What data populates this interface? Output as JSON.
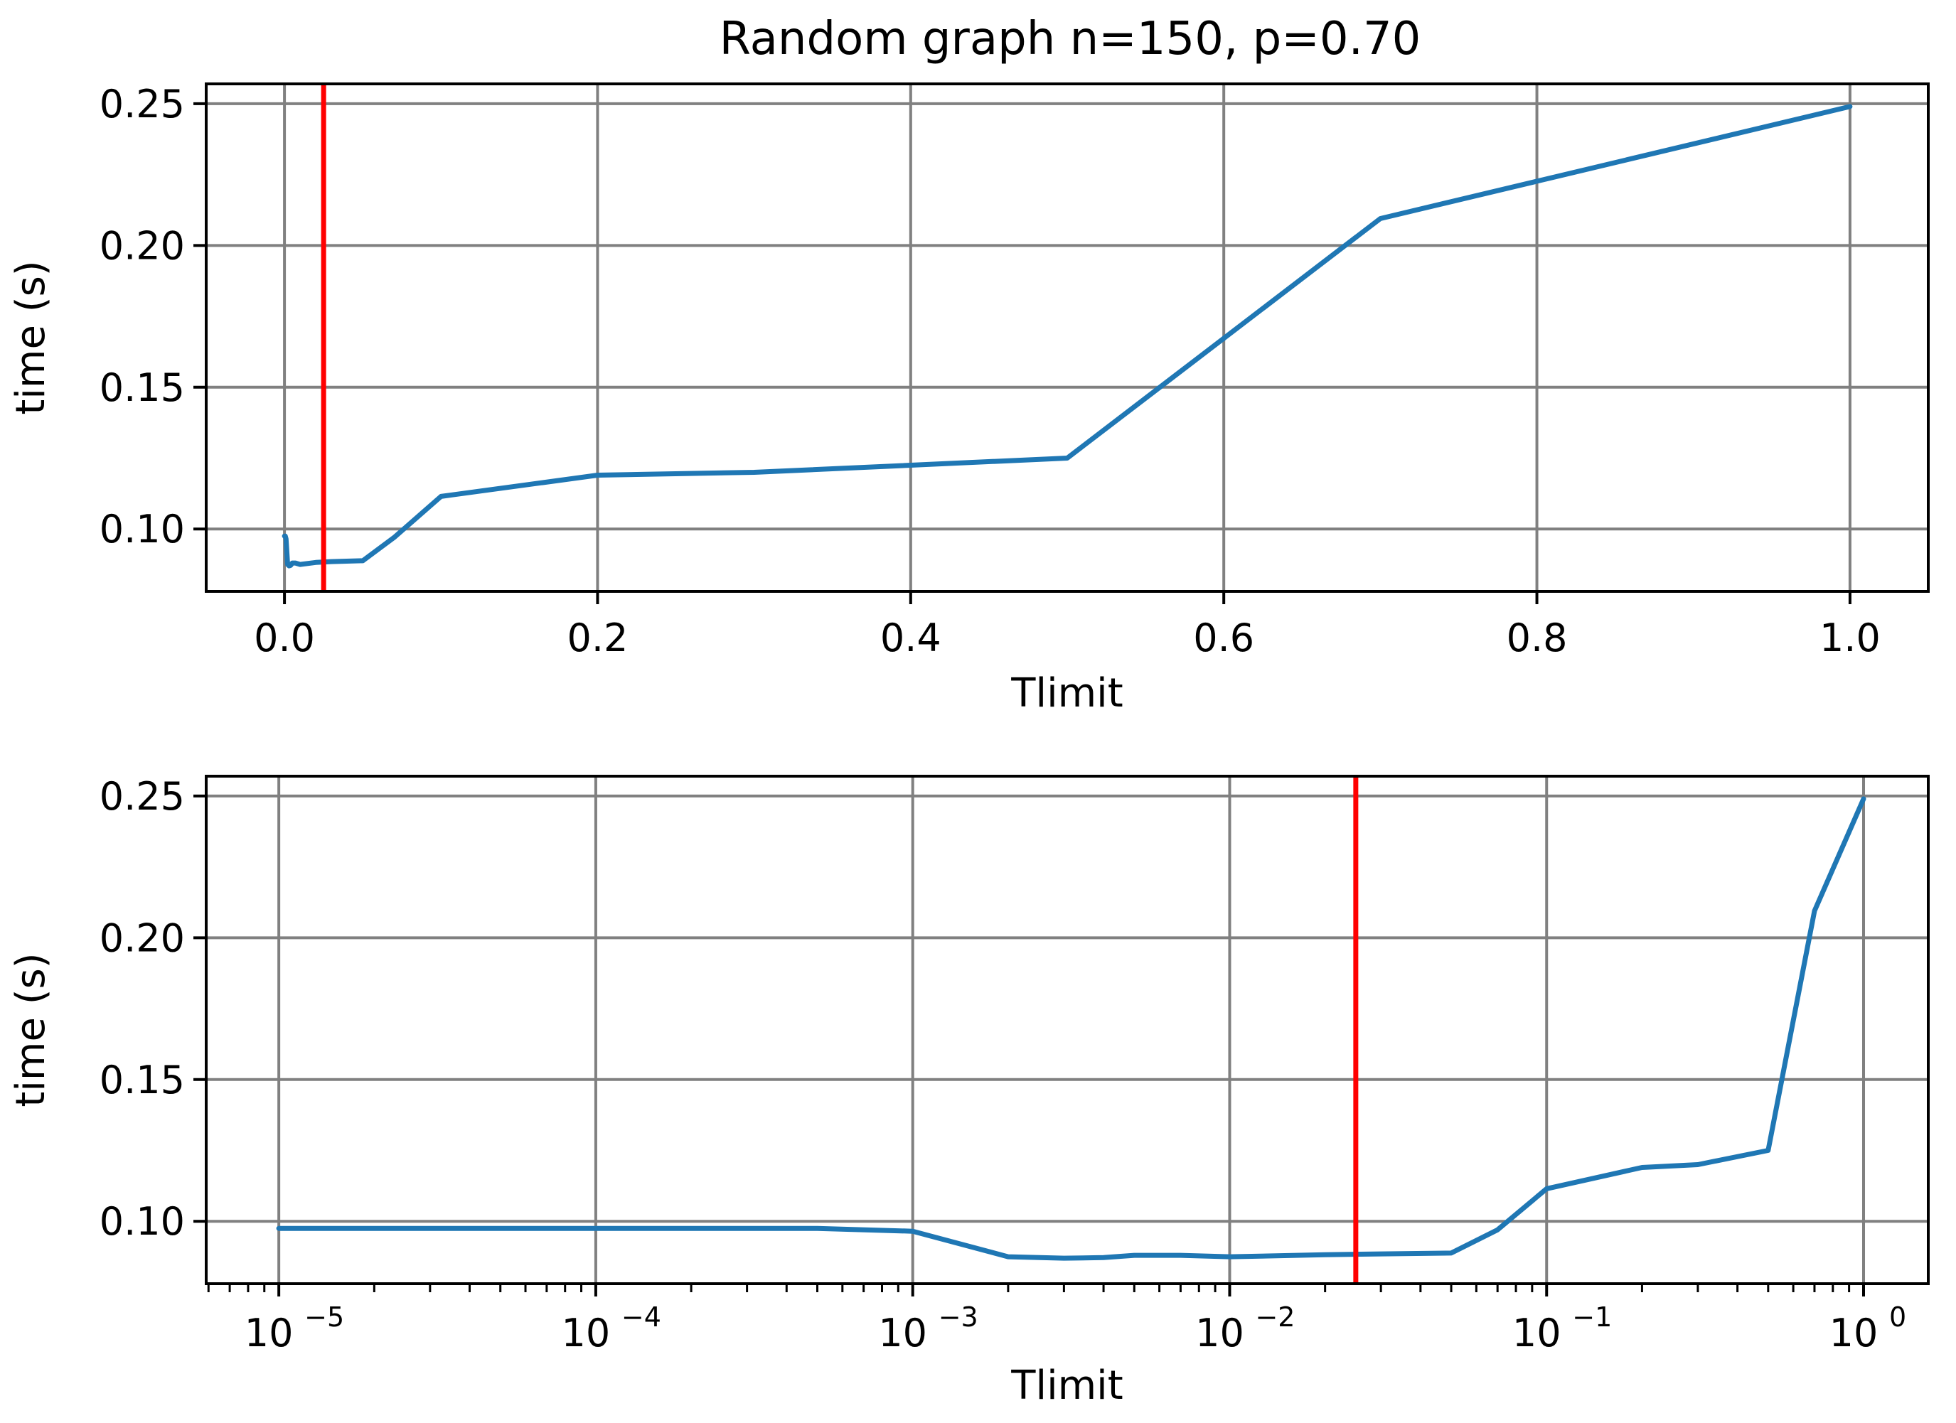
{
  "title": "Random graph n=150, p=0.70",
  "colors": {
    "line": "#1f77b4",
    "marker": "#ff0000",
    "grid": "#808080",
    "axes": "#000000"
  },
  "chart_data": [
    {
      "type": "line",
      "title": "Random graph n=150, p=0.70",
      "xlabel": "Tlimit",
      "ylabel": "time (s)",
      "xscale": "linear",
      "xlim": [
        -0.05,
        1.05
      ],
      "ylim": [
        0.078,
        0.257
      ],
      "xticks": [
        0.0,
        0.2,
        0.4,
        0.6,
        0.8,
        1.0
      ],
      "xtick_labels": [
        "0.0",
        "0.2",
        "0.4",
        "0.6",
        "0.8",
        "1.0"
      ],
      "yticks": [
        0.1,
        0.15,
        0.2,
        0.25
      ],
      "ytick_labels": [
        "0.10",
        "0.15",
        "0.20",
        "0.25"
      ],
      "grid": true,
      "vline": 0.025,
      "series": [
        {
          "x": [
            1e-05,
            0.0001,
            0.0005,
            0.001,
            0.002,
            0.003,
            0.004,
            0.005,
            0.007,
            0.01,
            0.02,
            0.03,
            0.05,
            0.07,
            0.1,
            0.2,
            0.3,
            0.5,
            0.7,
            1.0
          ],
          "y": [
            0.0975,
            0.0975,
            0.0975,
            0.0965,
            0.0875,
            0.087,
            0.0872,
            0.088,
            0.088,
            0.0875,
            0.0882,
            0.0885,
            0.0888,
            0.097,
            0.1115,
            0.119,
            0.12,
            0.125,
            0.2095,
            0.249
          ]
        }
      ]
    },
    {
      "type": "line",
      "xlabel": "Tlimit",
      "ylabel": "time (s)",
      "xscale": "log",
      "xlim": [
        5.9e-06,
        1.6
      ],
      "ylim": [
        0.078,
        0.257
      ],
      "xticks": [
        1e-05,
        0.0001,
        0.001,
        0.01,
        0.1,
        1
      ],
      "xtick_labels": [
        {
          "base": "10",
          "exp": "−5"
        },
        {
          "base": "10",
          "exp": "−4"
        },
        {
          "base": "10",
          "exp": "−3"
        },
        {
          "base": "10",
          "exp": "−2"
        },
        {
          "base": "10",
          "exp": "−1"
        },
        {
          "base": "10",
          "exp": "0"
        }
      ],
      "yticks": [
        0.1,
        0.15,
        0.2,
        0.25
      ],
      "ytick_labels": [
        "0.10",
        "0.15",
        "0.20",
        "0.25"
      ],
      "grid": true,
      "vline": 0.025,
      "series": [
        {
          "x": [
            1e-05,
            0.0001,
            0.0005,
            0.001,
            0.002,
            0.003,
            0.004,
            0.005,
            0.007,
            0.01,
            0.02,
            0.03,
            0.05,
            0.07,
            0.1,
            0.2,
            0.3,
            0.5,
            0.7,
            1.0
          ],
          "y": [
            0.0975,
            0.0975,
            0.0975,
            0.0965,
            0.0875,
            0.087,
            0.0872,
            0.088,
            0.088,
            0.0875,
            0.0882,
            0.0885,
            0.0888,
            0.097,
            0.1115,
            0.119,
            0.12,
            0.125,
            0.2095,
            0.249
          ]
        }
      ]
    }
  ]
}
